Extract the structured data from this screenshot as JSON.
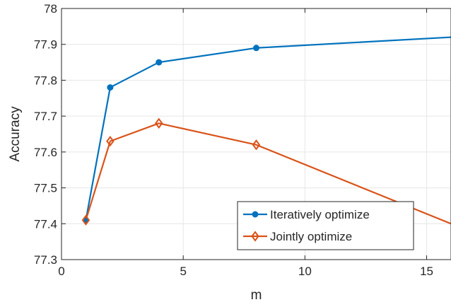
{
  "chart_data": {
    "type": "line",
    "title": "",
    "xlabel": "m",
    "ylabel": "Accuracy",
    "xlim": [
      0,
      16
    ],
    "ylim": [
      77.3,
      78
    ],
    "xticks": [
      0,
      5,
      10,
      15
    ],
    "yticks": [
      77.3,
      77.4,
      77.5,
      77.6,
      77.7,
      77.8,
      77.9,
      78
    ],
    "xtick_labels": [
      "0",
      "5",
      "10",
      "15"
    ],
    "ytick_labels": [
      "77.3",
      "77.4",
      "77.5",
      "77.6",
      "77.7",
      "77.8",
      "77.9",
      "78"
    ],
    "grid": true,
    "legend_position": "bottom-right",
    "series": [
      {
        "name": "Iteratively optimize",
        "color": "#0072BD",
        "marker": "circle",
        "x": [
          1,
          2,
          4,
          8,
          16
        ],
        "y": [
          77.41,
          77.78,
          77.85,
          77.89,
          77.92
        ]
      },
      {
        "name": "Jointly optimize",
        "color": "#D95319",
        "marker": "diamond",
        "x": [
          1,
          2,
          4,
          8,
          16
        ],
        "y": [
          77.41,
          77.63,
          77.68,
          77.62,
          77.4
        ]
      }
    ]
  }
}
